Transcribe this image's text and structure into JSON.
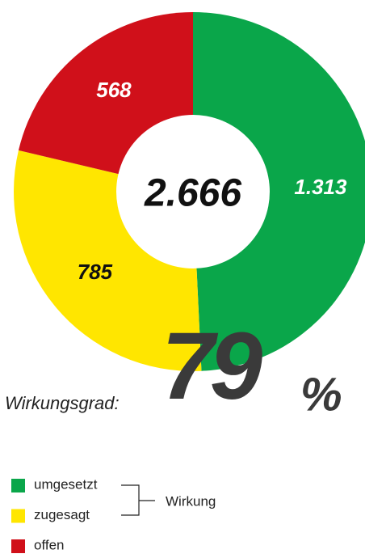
{
  "chart_data": {
    "type": "donut",
    "total": 2666,
    "total_label": "2.666",
    "series": [
      {
        "name": "umgesetzt",
        "color": "#0aa64a",
        "values": [
          1313
        ],
        "value_labels": [
          "1.313"
        ],
        "label_color": "#ffffff"
      },
      {
        "name": "zugesagt",
        "color": "#ffe600",
        "values": [
          785
        ],
        "value_labels": [
          "785"
        ],
        "label_color": "#111111"
      },
      {
        "name": "offen",
        "color": "#d0101a",
        "values": [
          568
        ],
        "value_labels": [
          "568"
        ],
        "label_color": "#ffffff"
      }
    ],
    "group_label": "Wirkung",
    "efficiency_label": "Wirkungsgrad:",
    "efficiency": 79,
    "efficiency_unit": "%"
  }
}
